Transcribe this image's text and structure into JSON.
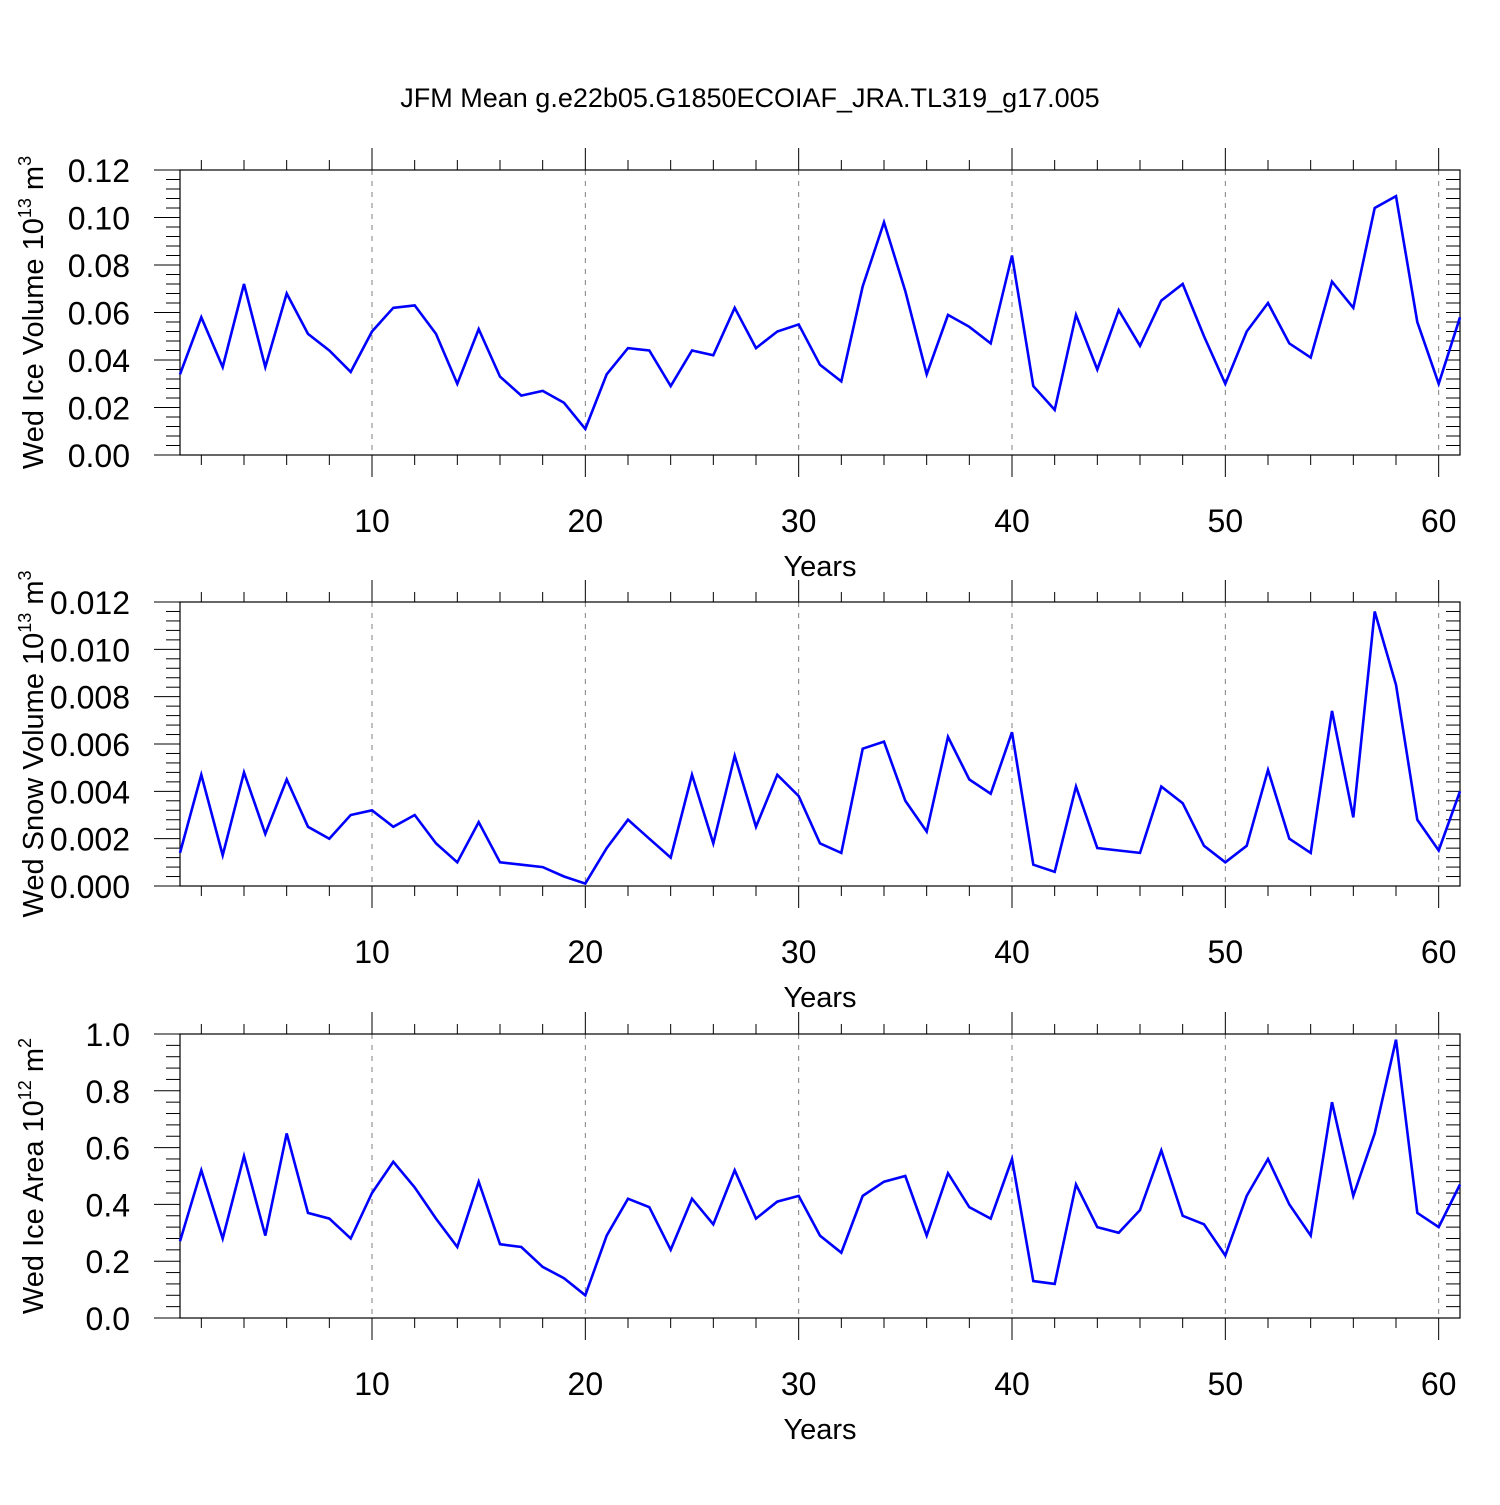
{
  "title": "JFM Mean g.e22b05.G1850ECOIAF_JRA.TL319_g17.005",
  "colors": {
    "line": "#0000ff",
    "axis": "#000000",
    "grid": "#808080"
  },
  "chart_data": [
    {
      "type": "line",
      "xlabel": "Years",
      "ylabel": {
        "base": "Wed Ice Volume 10",
        "exponent": "13",
        "unit": " m",
        "unit_exponent": "3"
      },
      "xlim": [
        1,
        61
      ],
      "ylim": [
        0,
        0.12
      ],
      "xticks": [
        10,
        20,
        30,
        40,
        50,
        60
      ],
      "xtick_labels": [
        "10",
        "20",
        "30",
        "40",
        "50",
        "60"
      ],
      "yticks": [
        0,
        0.02,
        0.04,
        0.06,
        0.08,
        0.1,
        0.12
      ],
      "ytick_labels": [
        "0.00",
        "0.02",
        "0.04",
        "0.06",
        "0.08",
        "0.10",
        "0.12"
      ],
      "grid_x": true,
      "x": [
        1,
        2,
        3,
        4,
        5,
        6,
        7,
        8,
        9,
        10,
        11,
        12,
        13,
        14,
        15,
        16,
        17,
        18,
        19,
        20,
        21,
        22,
        23,
        24,
        25,
        26,
        27,
        28,
        29,
        30,
        31,
        32,
        33,
        34,
        35,
        36,
        37,
        38,
        39,
        40,
        41,
        42,
        43,
        44,
        45,
        46,
        47,
        48,
        49,
        50,
        51,
        52,
        53,
        54,
        55,
        56,
        57,
        58,
        59,
        60,
        61
      ],
      "y": [
        0.034,
        0.058,
        0.037,
        0.072,
        0.037,
        0.068,
        0.051,
        0.044,
        0.035,
        0.052,
        0.062,
        0.063,
        0.051,
        0.03,
        0.053,
        0.033,
        0.025,
        0.027,
        0.022,
        0.011,
        0.034,
        0.045,
        0.044,
        0.029,
        0.044,
        0.042,
        0.062,
        0.045,
        0.052,
        0.055,
        0.038,
        0.031,
        0.071,
        0.098,
        0.069,
        0.034,
        0.059,
        0.054,
        0.047,
        0.084,
        0.029,
        0.019,
        0.059,
        0.036,
        0.061,
        0.046,
        0.065,
        0.072,
        0.05,
        0.03,
        0.052,
        0.064,
        0.047,
        0.041,
        0.073,
        0.062,
        0.104,
        0.109,
        0.056,
        0.03,
        0.058
      ]
    },
    {
      "type": "line",
      "xlabel": "Years",
      "ylabel": {
        "base": "Wed Snow Volume 10",
        "exponent": "13",
        "unit": " m",
        "unit_exponent": "3"
      },
      "xlim": [
        1,
        61
      ],
      "ylim": [
        0,
        0.012
      ],
      "xticks": [
        10,
        20,
        30,
        40,
        50,
        60
      ],
      "xtick_labels": [
        "10",
        "20",
        "30",
        "40",
        "50",
        "60"
      ],
      "yticks": [
        0,
        0.002,
        0.004,
        0.006,
        0.008,
        0.01,
        0.012
      ],
      "ytick_labels": [
        "0.000",
        "0.002",
        "0.004",
        "0.006",
        "0.008",
        "0.010",
        "0.012"
      ],
      "grid_x": true,
      "x": [
        1,
        2,
        3,
        4,
        5,
        6,
        7,
        8,
        9,
        10,
        11,
        12,
        13,
        14,
        15,
        16,
        17,
        18,
        19,
        20,
        21,
        22,
        23,
        24,
        25,
        26,
        27,
        28,
        29,
        30,
        31,
        32,
        33,
        34,
        35,
        36,
        37,
        38,
        39,
        40,
        41,
        42,
        43,
        44,
        45,
        46,
        47,
        48,
        49,
        50,
        51,
        52,
        53,
        54,
        55,
        56,
        57,
        58,
        59,
        60,
        61
      ],
      "y": [
        0.0014,
        0.0047,
        0.0013,
        0.0048,
        0.0022,
        0.0045,
        0.0025,
        0.002,
        0.003,
        0.0032,
        0.0025,
        0.003,
        0.0018,
        0.001,
        0.0027,
        0.001,
        0.0009,
        0.0008,
        0.0004,
        0.0001,
        0.0016,
        0.0028,
        0.002,
        0.0012,
        0.0047,
        0.0018,
        0.0055,
        0.0025,
        0.0047,
        0.0038,
        0.0018,
        0.0014,
        0.0058,
        0.0061,
        0.0036,
        0.0023,
        0.0063,
        0.0045,
        0.0039,
        0.0065,
        0.0009,
        0.0006,
        0.0042,
        0.0016,
        0.0015,
        0.0014,
        0.0042,
        0.0035,
        0.0017,
        0.001,
        0.0017,
        0.0049,
        0.002,
        0.0014,
        0.0074,
        0.0029,
        0.0116,
        0.0085,
        0.0028,
        0.0015,
        0.004
      ]
    },
    {
      "type": "line",
      "xlabel": "Years",
      "ylabel": {
        "base": "Wed Ice Area 10",
        "exponent": "12",
        "unit": " m",
        "unit_exponent": "2"
      },
      "xlim": [
        1,
        61
      ],
      "ylim": [
        0,
        1.0
      ],
      "xticks": [
        10,
        20,
        30,
        40,
        50,
        60
      ],
      "xtick_labels": [
        "10",
        "20",
        "30",
        "40",
        "50",
        "60"
      ],
      "yticks": [
        0,
        0.2,
        0.4,
        0.6,
        0.8,
        1.0
      ],
      "ytick_labels": [
        "0.0",
        "0.2",
        "0.4",
        "0.6",
        "0.8",
        "1.0"
      ],
      "grid_x": true,
      "x": [
        1,
        2,
        3,
        4,
        5,
        6,
        7,
        8,
        9,
        10,
        11,
        12,
        13,
        14,
        15,
        16,
        17,
        18,
        19,
        20,
        21,
        22,
        23,
        24,
        25,
        26,
        27,
        28,
        29,
        30,
        31,
        32,
        33,
        34,
        35,
        36,
        37,
        38,
        39,
        40,
        41,
        42,
        43,
        44,
        45,
        46,
        47,
        48,
        49,
        50,
        51,
        52,
        53,
        54,
        55,
        56,
        57,
        58,
        59,
        60,
        61
      ],
      "y": [
        0.27,
        0.52,
        0.28,
        0.57,
        0.29,
        0.65,
        0.37,
        0.35,
        0.28,
        0.44,
        0.55,
        0.46,
        0.35,
        0.25,
        0.48,
        0.26,
        0.25,
        0.18,
        0.14,
        0.08,
        0.29,
        0.42,
        0.39,
        0.24,
        0.42,
        0.33,
        0.52,
        0.35,
        0.41,
        0.43,
        0.29,
        0.23,
        0.43,
        0.48,
        0.5,
        0.29,
        0.51,
        0.39,
        0.35,
        0.56,
        0.13,
        0.12,
        0.47,
        0.32,
        0.3,
        0.38,
        0.59,
        0.36,
        0.33,
        0.22,
        0.43,
        0.56,
        0.4,
        0.29,
        0.76,
        0.43,
        0.65,
        0.98,
        0.37,
        0.32,
        0.47
      ]
    }
  ]
}
